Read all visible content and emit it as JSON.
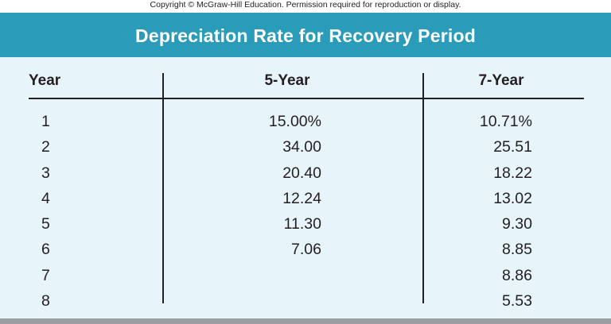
{
  "copyright": "Copyright © McGraw-Hill Education. Permission required for reproduction or display.",
  "title": "Depreciation Rate for Recovery Period",
  "headers": {
    "year": "Year",
    "five": "5-Year",
    "seven": "7-Year"
  },
  "rows": [
    {
      "year": "1",
      "five": "15.00%",
      "seven": "10.71%"
    },
    {
      "year": "2",
      "five": "34.00",
      "seven": "25.51"
    },
    {
      "year": "3",
      "five": "20.40",
      "seven": "18.22"
    },
    {
      "year": "4",
      "five": "12.24",
      "seven": "13.02"
    },
    {
      "year": "5",
      "five": "11.30",
      "seven": "9.30"
    },
    {
      "year": "6",
      "five": "7.06",
      "seven": "8.85"
    },
    {
      "year": "7",
      "five": "",
      "seven": "8.86"
    },
    {
      "year": "8",
      "five": "",
      "seven": "5.53"
    }
  ],
  "colors": {
    "title_bg": "#2a9bb9",
    "panel_bg": "#e7f4fa",
    "bottom_bar": "#9a9ea0"
  }
}
